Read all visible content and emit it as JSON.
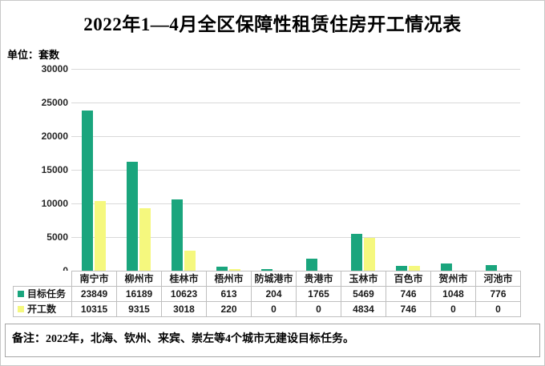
{
  "header": {
    "title": "2022年1—4月全区保障性租赁住房开工情况表",
    "unit_label": "单位：套数"
  },
  "note": {
    "text": "备注：2022年，北海、钦州、来宾、崇左等4个城市无建设目标任务。"
  },
  "chart_data": {
    "type": "bar",
    "title": "2022年1—4月全区保障性租赁住房开工情况表",
    "unit": "套数",
    "categories": [
      "南宁市",
      "柳州市",
      "桂林市",
      "梧州市",
      "防城港市",
      "贵港市",
      "玉林市",
      "百色市",
      "贺州市",
      "河池市"
    ],
    "series": [
      {
        "name": "目标任务",
        "color": "#1aa57d",
        "values": [
          23849,
          16189,
          10623,
          613,
          204,
          1765,
          5469,
          746,
          1048,
          776
        ]
      },
      {
        "name": "开工数",
        "color": "#f5f87e",
        "values": [
          10315,
          9315,
          3018,
          220,
          0,
          0,
          4834,
          746,
          0,
          0
        ]
      }
    ],
    "xlabel": "",
    "ylabel": "套数",
    "ylim": [
      0,
      30000
    ],
    "ytick_step": 5000,
    "grid": true,
    "gridline_color": "#d9d9d9",
    "legend_position": "data-table-left"
  }
}
